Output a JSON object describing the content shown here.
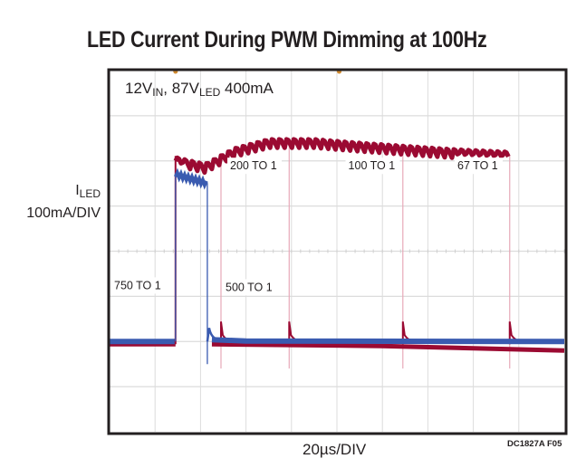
{
  "chart_data": {
    "type": "line",
    "title": "LED Current During PWM Dimming at 100Hz",
    "subtitle": {
      "prefix": "12V",
      "sub1": "IN",
      "mid": ", 87V",
      "sub2": "LED",
      "suffix": " 400mA"
    },
    "ylabel": {
      "name": "I",
      "name_sub": "LED",
      "scale": "100mA/DIV"
    },
    "xlabel": "20µs/DIV",
    "figure_id": "DC1827A F05",
    "x_units": "µs",
    "y_units": "mA",
    "xlim": [
      0,
      200
    ],
    "ylim": [
      -200,
      600
    ],
    "x_divisions": 10,
    "y_divisions": 8,
    "grid": true,
    "trigger_markers_us": [
      29,
      101
    ],
    "colors": {
      "red_trace": "#9b0a32",
      "blue_trace": "#3a5bb0",
      "grid": "#dcdcdc",
      "frame": "#231f20",
      "marker": "#d08a30"
    },
    "pulse_start_us": 29,
    "series": [
      {
        "name": "750 TO 1",
        "color": "#3a5bb0",
        "on_us": 29,
        "off_us": 43,
        "level_ma": 350,
        "label_pos_us": [
          2,
          116
        ]
      },
      {
        "name": "500 TO 1",
        "color": "#9b0a32",
        "on_us": 29,
        "off_us": 49,
        "level_ma": 400,
        "label_pos_us": [
          51,
          112
        ]
      },
      {
        "name": "200 TO 1",
        "color": "#9b0a32",
        "on_us": 29,
        "off_us": 79,
        "level_ma": 420,
        "label_pos_us": [
          53,
          381
        ]
      },
      {
        "name": "100 TO 1",
        "color": "#9b0a32",
        "on_us": 29,
        "off_us": 129,
        "level_ma": 415,
        "label_pos_us": [
          105,
          381
        ]
      },
      {
        "name": "67 TO 1",
        "color": "#9b0a32",
        "on_us": 29,
        "off_us": 176,
        "level_ma": 410,
        "label_pos_us": [
          153,
          381
        ]
      }
    ],
    "red_envelope": {
      "x_us": [
        29,
        42,
        55,
        70,
        90,
        110,
        130,
        150,
        176
      ],
      "y_ma": [
        400,
        385,
        420,
        440,
        440,
        432,
        425,
        418,
        412
      ],
      "ripple_ma": 22,
      "ripple_period_us": 3.2
    },
    "blue_envelope": {
      "x_us": [
        29,
        43
      ],
      "y_ma": [
        370,
        350
      ]
    },
    "baseline_ma": {
      "blue": 0,
      "red": -6
    }
  }
}
